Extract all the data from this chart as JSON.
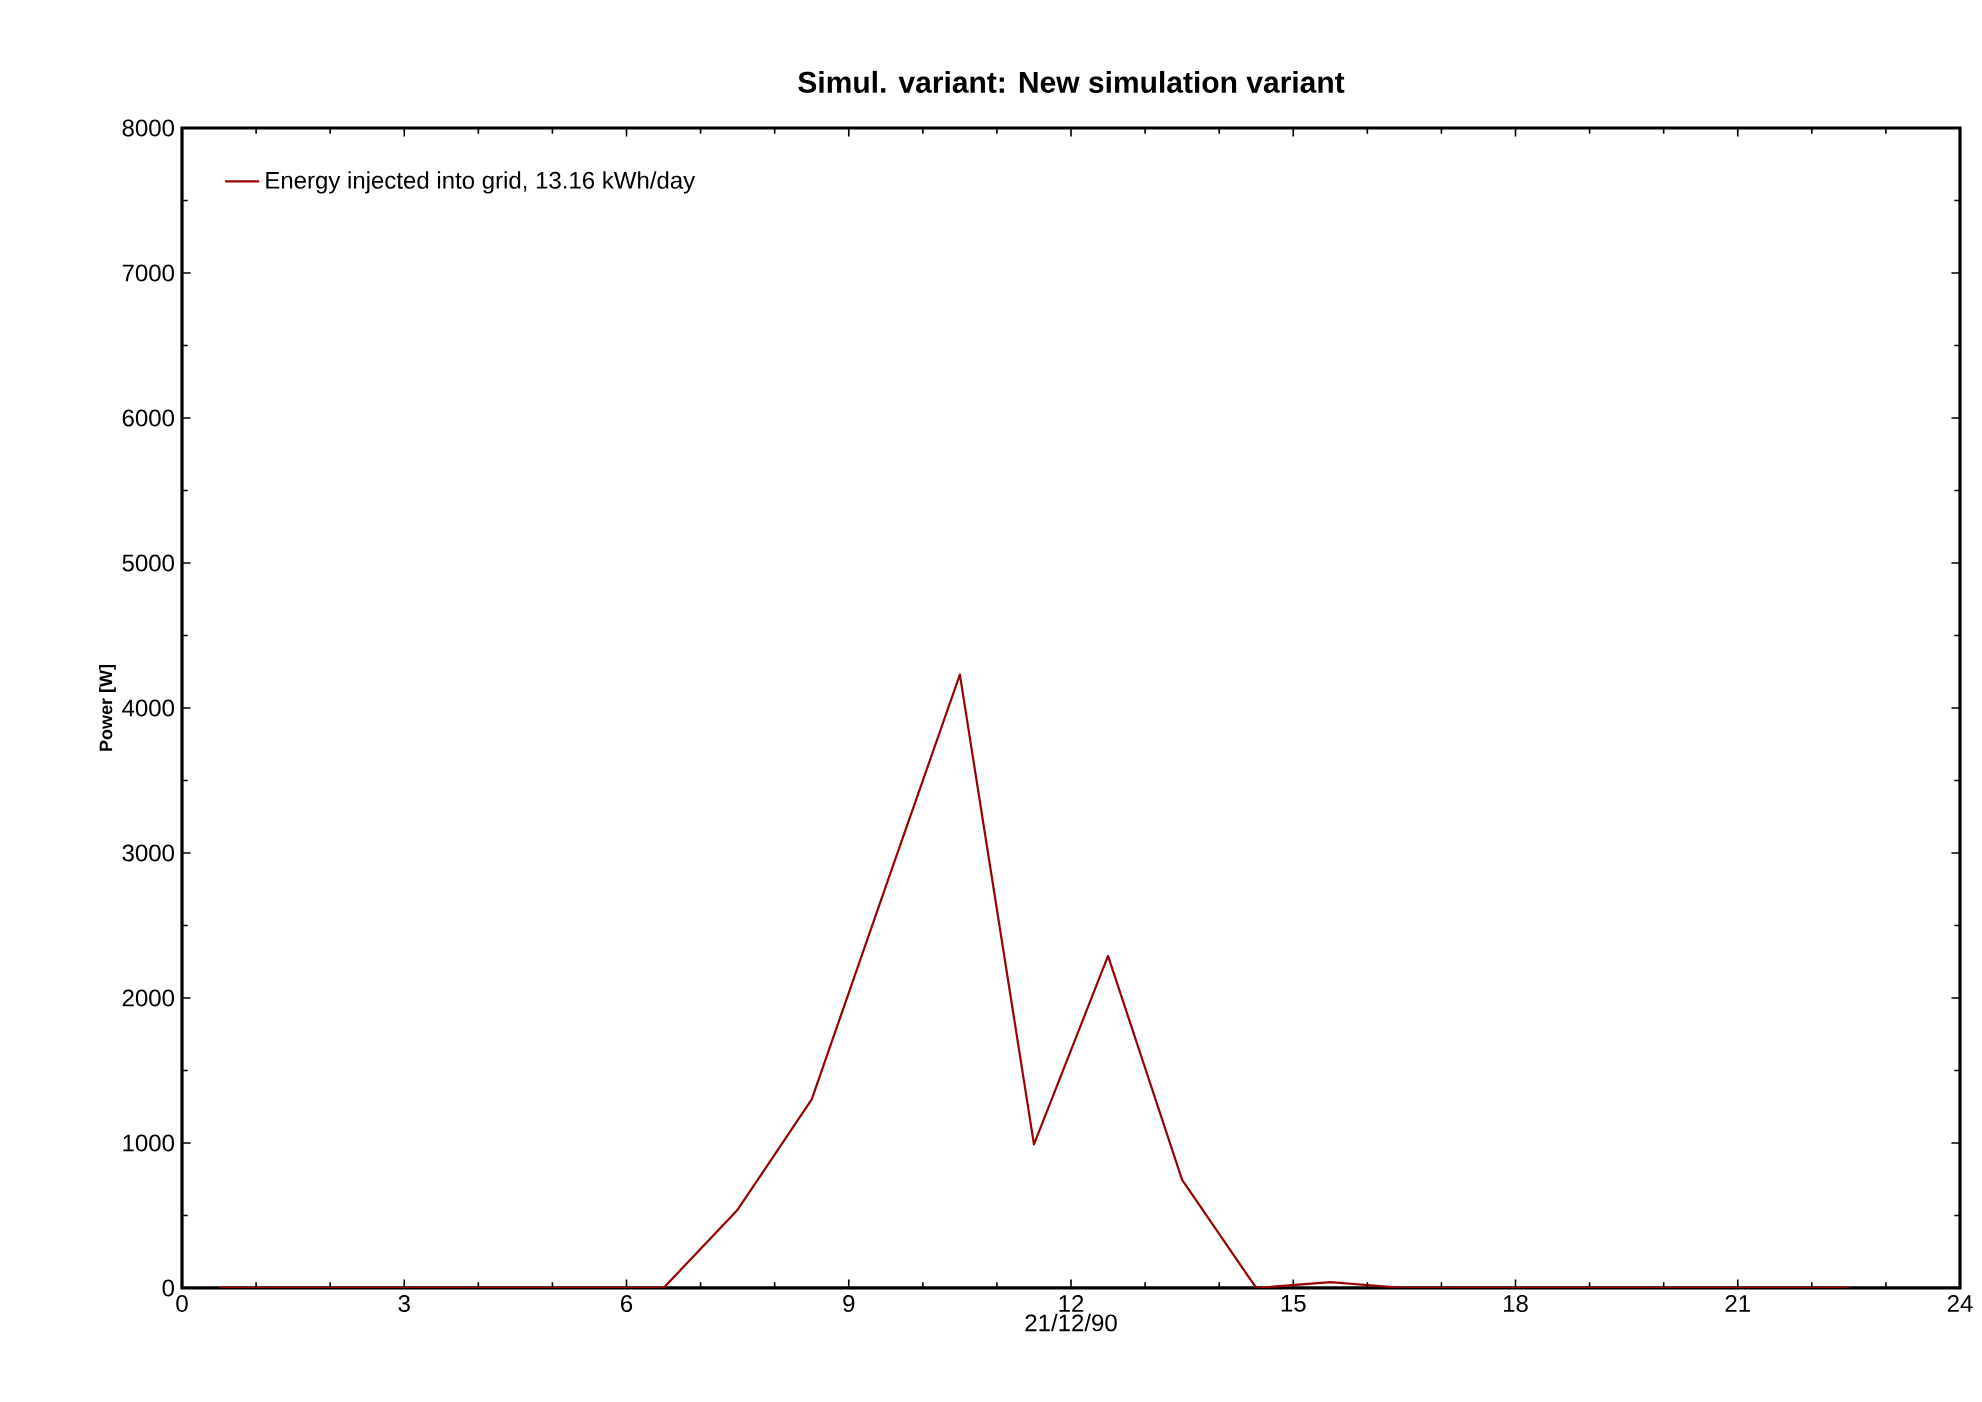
{
  "chart_data": {
    "type": "line",
    "title": "Simul. variant: New simulation variant",
    "xlabel": "21/12/90",
    "ylabel": "Power  [W]",
    "x": [
      0.5,
      1.5,
      2.5,
      3.5,
      4.5,
      5.5,
      6.5,
      7.5,
      8.5,
      9.5,
      10.5,
      11.5,
      12.5,
      13.5,
      14.5,
      15.5,
      16.5,
      17.5,
      18.5,
      19.5,
      20.5,
      21.5,
      22.5
    ],
    "series": [
      {
        "name": "Energy injected into grid,  13.16 kWh/day",
        "color": "#990000",
        "values": [
          0,
          0,
          0,
          0,
          0,
          0,
          0,
          540,
          1300,
          2770,
          4230,
          990,
          2290,
          745,
          0,
          40,
          0,
          0,
          0,
          0,
          0,
          0,
          0
        ]
      }
    ],
    "xlim": [
      0,
      24
    ],
    "xticks": [
      0,
      3,
      6,
      9,
      12,
      15,
      18,
      21,
      24
    ],
    "ylim": [
      0,
      8000
    ],
    "yticks": [
      0,
      1000,
      2000,
      3000,
      4000,
      5000,
      6000,
      7000,
      8000
    ],
    "legend": "top left",
    "grid": false,
    "marker": "none",
    "line_style": "solid"
  }
}
